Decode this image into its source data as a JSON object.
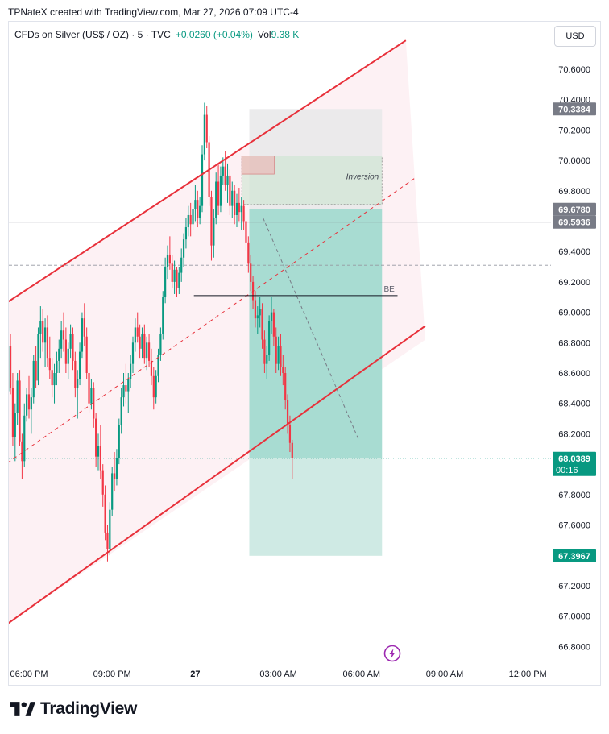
{
  "header": {
    "text": "TPNateX created with TradingView.com, Mar 27, 2026 07:09 UTC-4"
  },
  "legend": {
    "symbol": "CFDs on Silver (US$ / OZ) · 5 · TVC",
    "change": "+0.0260 (+0.04%)",
    "vol_label": "Vol",
    "vol_value": "9.38 K"
  },
  "currency_button": "USD",
  "footer": {
    "brand": "TradingView"
  },
  "colors": {
    "up": "#089981",
    "down": "#f23645",
    "channel": "#e8303a",
    "profit": "#a8dcd2",
    "loss": "#e9e9ea"
  },
  "chart_data": {
    "type": "candlestick",
    "y_axis": {
      "ylim": [
        66.72,
        70.79
      ],
      "ticks": [
        "70.6000",
        "70.4000",
        "70.2000",
        "70.0000",
        "69.8000",
        "69.6000",
        "69.4000",
        "69.2000",
        "69.0000",
        "68.8000",
        "68.6000",
        "68.4000",
        "68.2000",
        "68.0000",
        "67.8000",
        "67.6000",
        "67.4000",
        "67.2000",
        "67.0000",
        "66.8000"
      ]
    },
    "x_axis": {
      "ticks": [
        "06:00 PM",
        "09:00 PM",
        "27",
        "03:00 AM",
        "06:00 AM",
        "09:00 AM",
        "12:00 PM"
      ],
      "tick_hours": [
        18,
        21,
        24,
        27,
        30,
        33,
        36
      ]
    },
    "price_labels": [
      {
        "text": "70.3384",
        "value": 70.3384,
        "style": "dark"
      },
      {
        "text": "69.6780",
        "value": 69.678,
        "style": "dark"
      },
      {
        "text": "69.5936",
        "value": 69.5936,
        "style": "dark"
      },
      {
        "text": "68.0389",
        "value": 68.0389,
        "style": "green",
        "sub": "00:16"
      },
      {
        "text": "67.3967",
        "value": 67.3967,
        "style": "green"
      }
    ],
    "horizontal_lines": [
      {
        "value": 69.5936,
        "style": "solid"
      },
      {
        "value": 69.31,
        "style": "dashed"
      },
      {
        "value": 68.0389,
        "style": "dotted-green"
      }
    ],
    "be_line": {
      "label": "BE",
      "value": 69.11,
      "x_hours": [
        23.95,
        31.3
      ]
    },
    "channel": {
      "upper": [
        [
          17.0,
          69.04
        ],
        [
          31.6,
          70.79
        ]
      ],
      "lower": [
        [
          17.0,
          66.92
        ],
        [
          32.3,
          68.91
        ]
      ],
      "mid": [
        [
          17.0,
          67.98
        ],
        [
          31.9,
          69.88
        ]
      ]
    },
    "position": {
      "x_hours": [
        25.95,
        30.74
      ],
      "entry": 69.678,
      "stop": 70.3384,
      "target": 67.3967,
      "mid_target": 68.0389
    },
    "inversion_box": {
      "label": "Inversion",
      "top": 70.03,
      "bottom": 69.71,
      "x_hours": [
        25.68,
        30.74
      ]
    },
    "fvg_box": {
      "top": 70.03,
      "bottom": 69.91,
      "x_hours": [
        25.68,
        26.85
      ]
    },
    "trend_dashed": [
      [
        26.45,
        69.62
      ],
      [
        29.9,
        68.16
      ]
    ],
    "candles": {
      "start_hour": 17.0,
      "interval_min": 5,
      "ohlc": [
        [
          68.9,
          68.98,
          68.58,
          68.64
        ],
        [
          68.64,
          68.72,
          68.26,
          68.33
        ],
        [
          68.33,
          68.55,
          68.18,
          68.48
        ],
        [
          68.48,
          68.82,
          68.36,
          68.78
        ],
        [
          68.78,
          68.86,
          68.46,
          68.5
        ],
        [
          68.5,
          68.6,
          68.12,
          68.18
        ],
        [
          68.18,
          68.4,
          68.02,
          68.34
        ],
        [
          68.34,
          68.6,
          68.26,
          68.55
        ],
        [
          68.55,
          68.62,
          68.12,
          68.15
        ],
        [
          68.15,
          68.2,
          67.9,
          68.02
        ],
        [
          68.02,
          68.4,
          67.98,
          68.32
        ],
        [
          68.32,
          68.5,
          68.28,
          68.46
        ],
        [
          68.46,
          68.58,
          68.3,
          68.36
        ],
        [
          68.36,
          68.5,
          68.2,
          68.44
        ],
        [
          68.44,
          68.72,
          68.4,
          68.68
        ],
        [
          68.68,
          68.78,
          68.5,
          68.55
        ],
        [
          68.55,
          68.9,
          68.52,
          68.86
        ],
        [
          68.86,
          69.04,
          68.7,
          68.94
        ],
        [
          68.94,
          69.02,
          68.74,
          68.8
        ],
        [
          68.8,
          68.96,
          68.64,
          68.9
        ],
        [
          68.9,
          68.98,
          68.64,
          68.7
        ],
        [
          68.7,
          68.84,
          68.56,
          68.62
        ],
        [
          68.62,
          68.7,
          68.44,
          68.52
        ],
        [
          68.52,
          68.66,
          68.4,
          68.6
        ],
        [
          68.6,
          68.74,
          68.52,
          68.68
        ],
        [
          68.68,
          68.82,
          68.6,
          68.76
        ],
        [
          68.76,
          68.94,
          68.7,
          68.88
        ],
        [
          68.88,
          69.0,
          68.74,
          68.82
        ],
        [
          68.82,
          68.9,
          68.6,
          68.66
        ],
        [
          68.66,
          68.8,
          68.56,
          68.76
        ],
        [
          68.76,
          68.92,
          68.7,
          68.86
        ],
        [
          68.86,
          68.9,
          68.62,
          68.68
        ],
        [
          68.68,
          68.74,
          68.44,
          68.5
        ],
        [
          68.5,
          68.62,
          68.3,
          68.56
        ],
        [
          68.56,
          68.8,
          68.52,
          68.74
        ],
        [
          68.74,
          69.0,
          68.7,
          68.96
        ],
        [
          68.96,
          69.06,
          68.78,
          68.84
        ],
        [
          68.84,
          68.9,
          68.56,
          68.6
        ],
        [
          68.6,
          68.66,
          68.34,
          68.4
        ],
        [
          68.4,
          68.56,
          68.36,
          68.5
        ],
        [
          68.5,
          68.54,
          68.24,
          68.3
        ],
        [
          68.3,
          68.34,
          67.98,
          68.05
        ],
        [
          68.05,
          68.2,
          67.96,
          68.12
        ],
        [
          68.12,
          68.26,
          67.9,
          67.96
        ],
        [
          67.96,
          68.0,
          67.72,
          67.8
        ],
        [
          67.8,
          67.86,
          67.5,
          67.55
        ],
        [
          67.55,
          67.6,
          67.36,
          67.44
        ],
        [
          67.44,
          67.75,
          67.4,
          67.7
        ],
        [
          67.7,
          67.98,
          67.66,
          67.94
        ],
        [
          67.94,
          68.08,
          67.82,
          67.9
        ],
        [
          67.9,
          68.1,
          67.86,
          68.04
        ],
        [
          68.04,
          68.3,
          68.0,
          68.26
        ],
        [
          68.26,
          68.5,
          68.2,
          68.44
        ],
        [
          68.44,
          68.6,
          68.38,
          68.52
        ],
        [
          68.52,
          68.66,
          68.4,
          68.48
        ],
        [
          68.48,
          68.6,
          68.34,
          68.56
        ],
        [
          68.56,
          68.72,
          68.5,
          68.66
        ],
        [
          68.66,
          68.84,
          68.6,
          68.8
        ],
        [
          68.8,
          68.96,
          68.74,
          68.9
        ],
        [
          68.9,
          69.0,
          68.8,
          68.84
        ],
        [
          68.84,
          68.92,
          68.7,
          68.76
        ],
        [
          68.76,
          68.9,
          68.7,
          68.86
        ],
        [
          68.86,
          68.92,
          68.66,
          68.7
        ],
        [
          68.7,
          68.84,
          68.62,
          68.8
        ],
        [
          68.8,
          68.86,
          68.64,
          68.68
        ],
        [
          68.68,
          68.76,
          68.52,
          68.58
        ],
        [
          68.58,
          68.64,
          68.36,
          68.44
        ],
        [
          68.44,
          68.62,
          68.4,
          68.58
        ],
        [
          68.58,
          68.76,
          68.54,
          68.72
        ],
        [
          68.72,
          68.9,
          68.68,
          68.86
        ],
        [
          68.86,
          69.14,
          68.82,
          69.1
        ],
        [
          69.1,
          69.36,
          69.06,
          69.3
        ],
        [
          69.3,
          69.44,
          69.22,
          69.38
        ],
        [
          69.38,
          69.5,
          69.28,
          69.32
        ],
        [
          69.32,
          69.38,
          69.16,
          69.2
        ],
        [
          69.2,
          69.34,
          69.12,
          69.28
        ],
        [
          69.28,
          69.3,
          69.1,
          69.16
        ],
        [
          69.16,
          69.3,
          69.12,
          69.26
        ],
        [
          69.26,
          69.42,
          69.2,
          69.36
        ],
        [
          69.36,
          69.52,
          69.3,
          69.48
        ],
        [
          69.48,
          69.62,
          69.42,
          69.56
        ],
        [
          69.56,
          69.7,
          69.5,
          69.64
        ],
        [
          69.64,
          69.72,
          69.5,
          69.58
        ],
        [
          69.58,
          69.72,
          69.54,
          69.68
        ],
        [
          69.68,
          69.84,
          69.6,
          69.74
        ],
        [
          69.74,
          69.8,
          69.56,
          69.62
        ],
        [
          69.62,
          69.76,
          69.58,
          69.7
        ],
        [
          69.7,
          70.1,
          69.66,
          70.04
        ],
        [
          70.04,
          70.38,
          70.0,
          70.3
        ],
        [
          70.3,
          70.36,
          70.08,
          70.12
        ],
        [
          70.12,
          70.16,
          69.7,
          69.76
        ],
        [
          69.76,
          69.8,
          69.34,
          69.44
        ],
        [
          69.44,
          69.68,
          69.36,
          69.62
        ],
        [
          69.62,
          69.92,
          69.58,
          69.86
        ],
        [
          69.86,
          69.98,
          69.64,
          69.7
        ],
        [
          69.7,
          69.96,
          69.66,
          69.9
        ],
        [
          69.9,
          70.02,
          69.84,
          69.96
        ],
        [
          69.96,
          70.06,
          69.8,
          69.84
        ],
        [
          69.84,
          69.98,
          69.72,
          69.9
        ],
        [
          69.9,
          69.94,
          69.64,
          69.7
        ],
        [
          69.7,
          69.86,
          69.62,
          69.8
        ],
        [
          69.8,
          69.84,
          69.58,
          69.64
        ],
        [
          69.64,
          69.78,
          69.56,
          69.72
        ],
        [
          69.72,
          69.82,
          69.6,
          69.66
        ],
        [
          69.66,
          69.76,
          69.54,
          69.7
        ],
        [
          69.7,
          69.74,
          69.54,
          69.6
        ],
        [
          69.6,
          69.66,
          69.4,
          69.46
        ],
        [
          69.46,
          69.5,
          69.26,
          69.32
        ],
        [
          69.32,
          69.38,
          69.14,
          69.2
        ],
        [
          69.2,
          69.24,
          69.02,
          69.08
        ],
        [
          69.08,
          69.14,
          68.9,
          68.96
        ],
        [
          68.96,
          69.04,
          68.86,
          68.98
        ],
        [
          68.98,
          69.1,
          68.9,
          69.02
        ],
        [
          69.02,
          69.06,
          68.76,
          68.82
        ],
        [
          68.82,
          68.88,
          68.6,
          68.66
        ],
        [
          68.66,
          68.78,
          68.56,
          68.72
        ],
        [
          68.72,
          68.98,
          68.68,
          68.94
        ],
        [
          68.94,
          69.1,
          68.86,
          69.0
        ],
        [
          69.0,
          69.02,
          68.78,
          68.84
        ],
        [
          68.84,
          68.9,
          68.6,
          68.66
        ],
        [
          68.66,
          68.84,
          68.62,
          68.78
        ],
        [
          68.78,
          68.86,
          68.58,
          68.64
        ],
        [
          68.64,
          68.72,
          68.52,
          68.6
        ],
        [
          68.6,
          68.64,
          68.36,
          68.42
        ],
        [
          68.42,
          68.46,
          68.2,
          68.26
        ],
        [
          68.26,
          68.32,
          68.08,
          68.14
        ],
        [
          68.14,
          68.16,
          67.9,
          68.04
        ]
      ]
    }
  }
}
